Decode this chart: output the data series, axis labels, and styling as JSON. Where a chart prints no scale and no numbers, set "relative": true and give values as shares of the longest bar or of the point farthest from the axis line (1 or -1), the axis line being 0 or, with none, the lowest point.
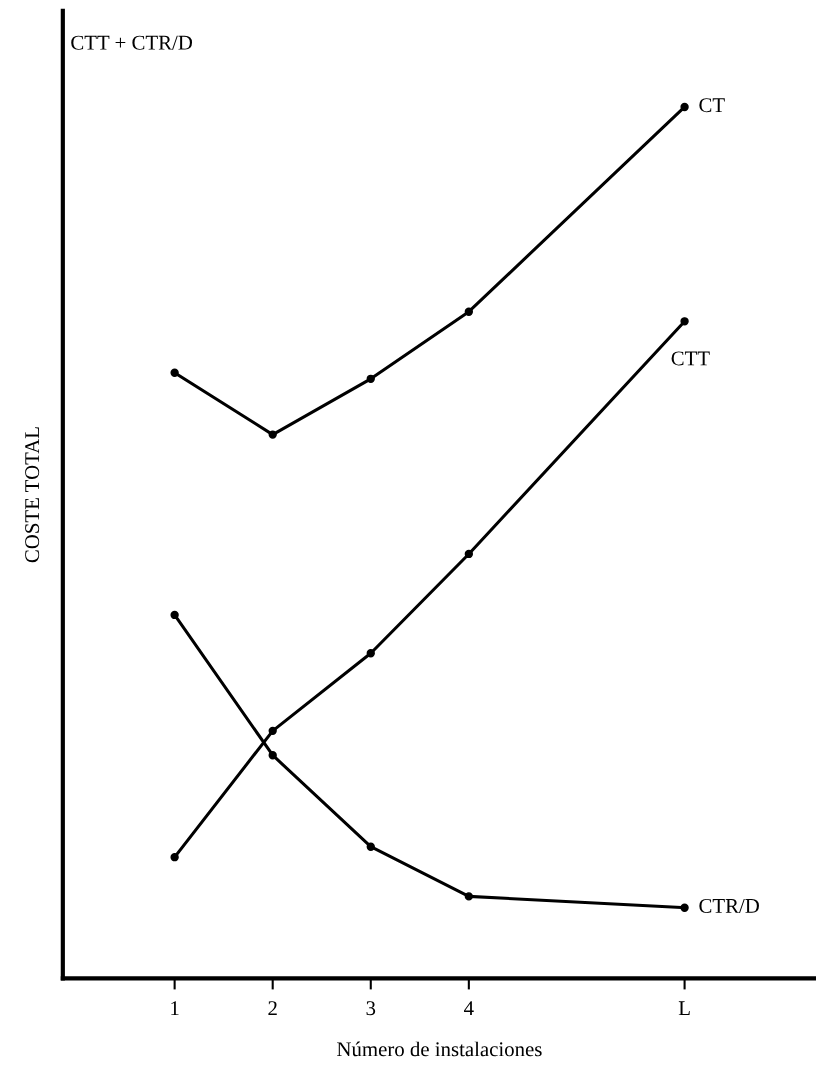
{
  "chart_data": {
    "type": "line",
    "relative": true,
    "ylabel": "COSTE TOTAL",
    "xlabel": "Número de instalaciones",
    "annotations": [
      "CTT + CTR/D"
    ],
    "x": [
      1,
      2,
      3,
      4,
      6.2
    ],
    "xlim": [
      -0.14,
      7.54
    ],
    "xticks": [
      1,
      2,
      3,
      4,
      {
        "value": 6.2,
        "label": "L"
      }
    ],
    "marker": "circle",
    "line_style": "solid",
    "grid": false,
    "legend": false,
    "series": [
      {
        "name": "CT",
        "color": "#000000",
        "values": [
          0.695,
          0.624,
          0.688,
          0.765,
          1
        ]
      },
      {
        "name": "CTT",
        "color": "#000000",
        "values": [
          0.139,
          0.284,
          0.373,
          0.487,
          0.754
        ]
      },
      {
        "name": "CTR/D",
        "color": "#000000",
        "values": [
          0.417,
          0.256,
          0.151,
          0.094,
          0.081
        ]
      }
    ]
  }
}
